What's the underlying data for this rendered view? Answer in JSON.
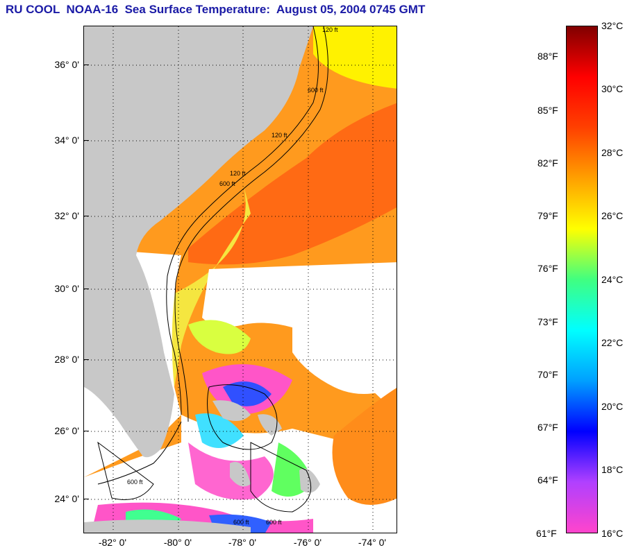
{
  "title": "RU COOL  NOAA-16  Sea Surface Temperature:  August 05, 2004 0745 GMT",
  "map": {
    "lat_labels": [
      "36° 0'",
      "34° 0'",
      "32° 0'",
      "30° 0'",
      "28° 0'",
      "26° 0'",
      "24° 0'"
    ],
    "lon_labels": [
      "-82° 0'",
      "-80° 0'",
      "-78° 0'",
      "-76° 0'",
      "-74° 0'"
    ],
    "contour_labels": [
      "120 ft",
      "600 ft",
      "120 ft",
      "600 ft",
      "120 ft",
      "600 ft",
      "600 ft",
      "600 ft"
    ],
    "colors": {
      "land": "#c8c8c8",
      "cloud": "#ffffff",
      "contour": "#000000"
    }
  },
  "colorbar": {
    "fahrenheit_labels": [
      "88°F",
      "85°F",
      "82°F",
      "79°F",
      "76°F",
      "73°F",
      "70°F",
      "67°F",
      "64°F",
      "61°F"
    ],
    "celsius_labels": [
      "32°C",
      "30°C",
      "28°C",
      "26°C",
      "24°C",
      "22°C",
      "20°C",
      "18°C",
      "16°C"
    ],
    "range_c": [
      16,
      32
    ],
    "colors": [
      "#ff44cc",
      "#b040ff",
      "#0000ff",
      "#00a0ff",
      "#00ffff",
      "#40ff80",
      "#ffff00",
      "#ffa000",
      "#ff4000",
      "#ff0000",
      "#800000"
    ]
  }
}
